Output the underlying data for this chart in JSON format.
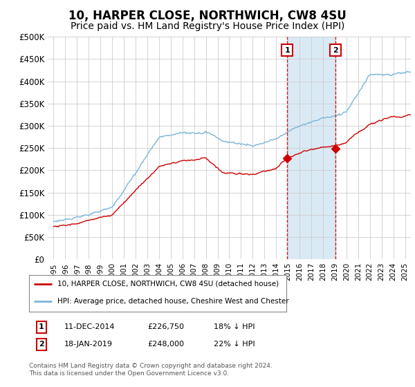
{
  "title": "10, HARPER CLOSE, NORTHWICH, CW8 4SU",
  "subtitle": "Price paid vs. HM Land Registry's House Price Index (HPI)",
  "title_fontsize": 12,
  "subtitle_fontsize": 10,
  "ylabel_ticks": [
    "£0",
    "£50K",
    "£100K",
    "£150K",
    "£200K",
    "£250K",
    "£300K",
    "£350K",
    "£400K",
    "£450K",
    "£500K"
  ],
  "ytick_values": [
    0,
    50000,
    100000,
    150000,
    200000,
    250000,
    300000,
    350000,
    400000,
    450000,
    500000
  ],
  "ylim": [
    0,
    500000
  ],
  "hpi_color": "#7ab4d8",
  "hpi_fill_color": "#daeaf5",
  "price_color": "#cc0000",
  "background_color": "#ffffff",
  "grid_color": "#cccccc",
  "sale1_x": 2014.94,
  "sale1_y": 226750,
  "sale1_label": "1",
  "sale1_date": "11-DEC-2014",
  "sale1_price": "£226,750",
  "sale1_hpi": "18% ↓ HPI",
  "sale2_x": 2019.05,
  "sale2_y": 248000,
  "sale2_label": "2",
  "sale2_date": "18-JAN-2019",
  "sale2_price": "£248,000",
  "sale2_hpi": "22% ↓ HPI",
  "legend_line1": "10, HARPER CLOSE, NORTHWICH, CW8 4SU (detached house)",
  "legend_line2": "HPI: Average price, detached house, Cheshire West and Chester",
  "footnote": "Contains HM Land Registry data © Crown copyright and database right 2024.\nThis data is licensed under the Open Government Licence v3.0.",
  "xlim_left": 1994.5,
  "xlim_right": 2025.5
}
